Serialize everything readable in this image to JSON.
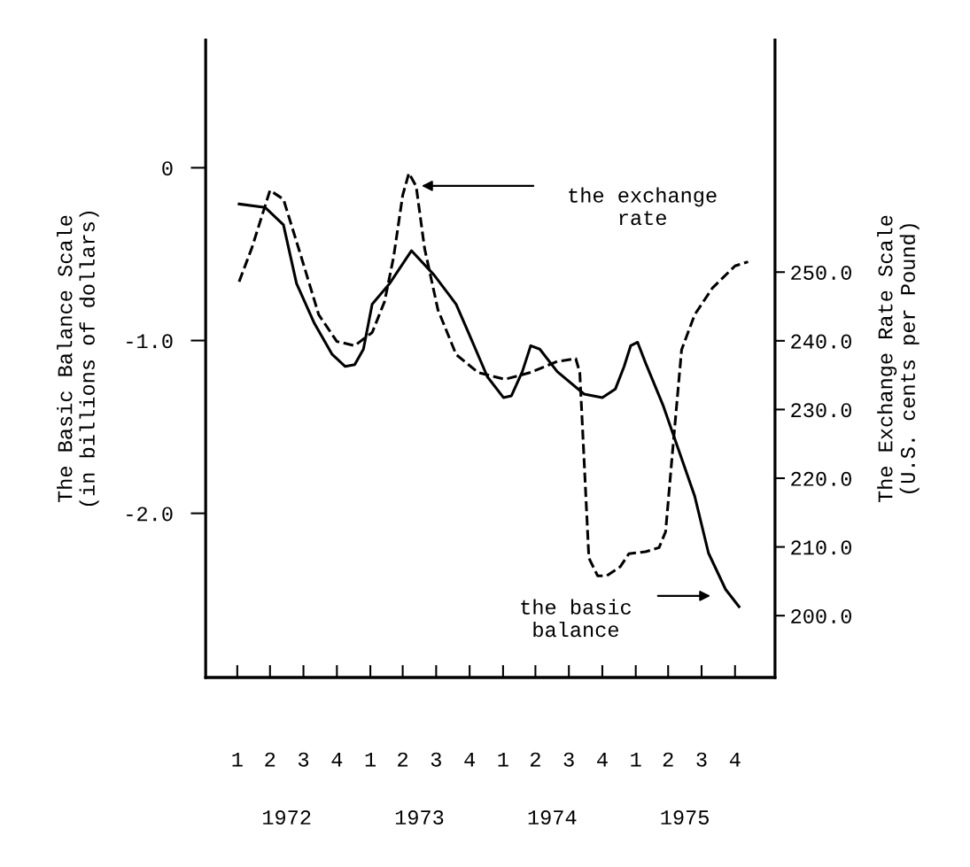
{
  "chart_data": {
    "type": "line",
    "ylabel": "The Basic Balance Scale\n(in billions of dollars)",
    "y2label": "The Exchange Rate Scale\n(U.S. cents per Pound)",
    "xlim": [
      "1971-11-20",
      "1976-03-04"
    ],
    "xticks": [
      {
        "value": "1972-02-15",
        "label": "1"
      },
      {
        "value": "1972-05-15",
        "label": "2"
      },
      {
        "value": "1972-08-15",
        "label": "3"
      },
      {
        "value": "1972-11-15",
        "label": "4"
      },
      {
        "value": "1973-02-15",
        "label": "1"
      },
      {
        "value": "1973-05-15",
        "label": "2"
      },
      {
        "value": "1973-08-15",
        "label": "3"
      },
      {
        "value": "1973-11-15",
        "label": "4"
      },
      {
        "value": "1974-02-15",
        "label": "1"
      },
      {
        "value": "1974-05-15",
        "label": "2"
      },
      {
        "value": "1974-08-15",
        "label": "3"
      },
      {
        "value": "1974-11-15",
        "label": "4"
      },
      {
        "value": "1975-02-15",
        "label": "1"
      },
      {
        "value": "1975-05-15",
        "label": "2"
      },
      {
        "value": "1975-08-15",
        "label": "3"
      },
      {
        "value": "1975-11-15",
        "label": "4"
      }
    ],
    "ylim": [
      -2.95,
      0.74
    ],
    "yticks": [
      0,
      {
        "value": -1,
        "label": "-1.0"
      },
      {
        "value": -2,
        "label": "-2.0"
      }
    ],
    "y2lim": [
      191.0,
      283.8
    ],
    "y2ticks": [
      {
        "value": 250,
        "label": "250.0"
      },
      {
        "value": 240,
        "label": "240.0"
      },
      {
        "value": 230,
        "label": "230.0"
      },
      {
        "value": 220,
        "label": "220.0"
      },
      {
        "value": 210,
        "label": "210.0"
      },
      {
        "value": 200,
        "label": "200.0"
      }
    ],
    "grid": false,
    "series": [
      {
        "color": "#000000",
        "line_style": "solid",
        "x": [
          "1972-02-20",
          "1972-05-02",
          "1972-06-21",
          "1972-07-27",
          "1972-09-14",
          "1972-11-02",
          "1972-12-08",
          "1973-01-03",
          "1973-01-27",
          "1973-02-20",
          "1973-04-09",
          "1973-06-08",
          "1973-08-09",
          "1973-10-09",
          "1973-11-15",
          "1974-01-03",
          "1974-02-16",
          "1974-03-10",
          "1974-04-09",
          "1974-05-02",
          "1974-05-27",
          "1974-07-14",
          "1974-09-26",
          "1974-11-15",
          "1974-12-21",
          "1975-01-14",
          "1975-02-01",
          "1975-02-20",
          "1975-03-14",
          "1975-05-02",
          "1975-07-27",
          "1975-09-03",
          "1975-10-20",
          "1975-11-26"
        ],
        "values": [
          -0.21,
          -0.23,
          -0.33,
          -0.67,
          -0.9,
          -1.08,
          -1.15,
          -1.14,
          -1.05,
          -0.79,
          -0.67,
          -0.48,
          -0.62,
          -0.79,
          -0.97,
          -1.21,
          -1.33,
          -1.32,
          -1.18,
          -1.03,
          -1.05,
          -1.18,
          -1.31,
          -1.33,
          -1.28,
          -1.15,
          -1.03,
          -1.01,
          -1.13,
          -1.38,
          -1.9,
          -2.23,
          -2.44,
          -2.54
        ]
      },
      {
        "color": "#000000",
        "line_style": "dashed",
        "axis": "y2",
        "x": [
          "1972-02-20",
          "1972-03-26",
          "1972-05-15",
          "1972-06-21",
          "1972-08-09",
          "1972-09-26",
          "1972-11-15",
          "1973-01-03",
          "1973-02-20",
          "1973-03-26",
          "1973-04-20",
          "1973-05-15",
          "1973-06-01",
          "1973-06-21",
          "1973-07-14",
          "1973-08-20",
          "1973-10-09",
          "1973-12-08",
          "1974-02-20",
          "1974-05-02",
          "1974-07-14",
          "1974-09-03",
          "1974-09-14",
          "1974-09-26",
          "1974-10-09",
          "1974-11-02",
          "1974-11-27",
          "1975-01-03",
          "1975-01-27",
          "1975-03-14",
          "1975-04-20",
          "1975-05-08",
          "1975-05-27",
          "1975-06-21",
          "1975-07-27",
          "1975-09-14",
          "1975-11-15",
          "1975-12-21"
        ],
        "values": [
          248.6,
          253.5,
          261.9,
          260.6,
          252.2,
          243.8,
          239.9,
          239.3,
          241.2,
          245.7,
          252.2,
          261.2,
          264.4,
          262.5,
          253.5,
          244.5,
          238.0,
          235.4,
          234.4,
          235.4,
          237.0,
          237.4,
          235.4,
          222.5,
          208.4,
          205.8,
          205.8,
          207.1,
          209.0,
          209.3,
          209.9,
          212.2,
          223.8,
          238.7,
          243.8,
          247.7,
          250.9,
          251.5
        ]
      }
    ],
    "annotations": [
      "the exchange\nrate",
      "the basic\nbalance",
      "1972",
      "1973",
      "1974",
      "1975"
    ]
  }
}
